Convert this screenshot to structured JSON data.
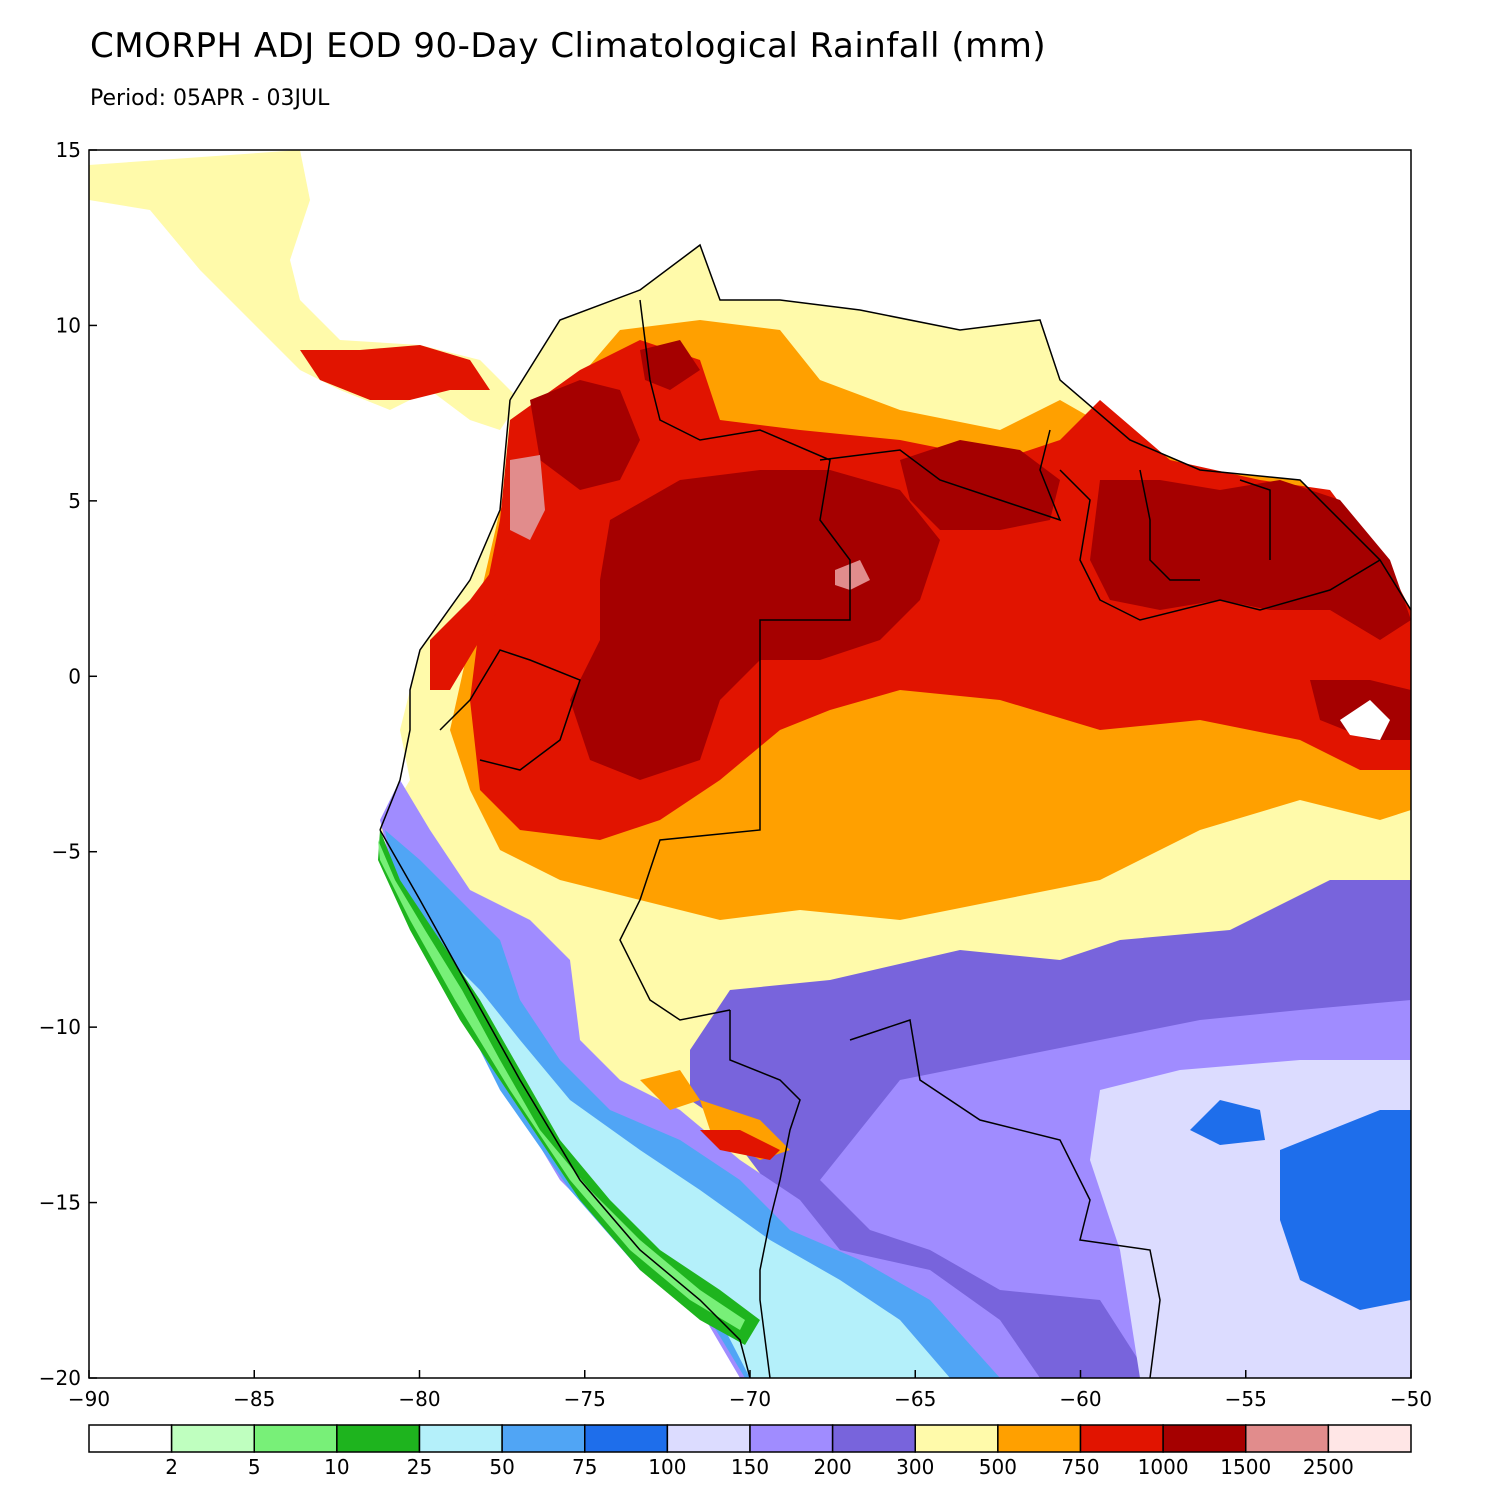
{
  "title": "CMORPH ADJ EOD 90-Day Climatological Rainfall (mm)",
  "subtitle": "Period: 05APR - 03JUL",
  "map": {
    "lon_range": [
      -90,
      -50
    ],
    "lat_range": [
      -20,
      15
    ],
    "x_ticks": [
      "-90",
      "-85",
      "-80",
      "-75",
      "-70",
      "-65",
      "-60",
      "-55",
      "-50"
    ],
    "y_ticks": [
      "15",
      "10",
      "5",
      "0",
      "-5",
      "-10",
      "-15",
      "-20"
    ]
  },
  "legend": {
    "colors": [
      "#ffffff",
      "#bfffbf",
      "#78f078",
      "#1eb41e",
      "#b4f0fa",
      "#50a5f5",
      "#1e6eeb",
      "#dcdcff",
      "#a08cff",
      "#7864dc",
      "#fffaaa",
      "#ffa000",
      "#e11400",
      "#a50000",
      "#e18c8c",
      "#ffe6e6"
    ],
    "labels": [
      "2",
      "5",
      "10",
      "25",
      "50",
      "75",
      "100",
      "150",
      "200",
      "300",
      "500",
      "750",
      "1000",
      "1500",
      "2500"
    ]
  }
}
